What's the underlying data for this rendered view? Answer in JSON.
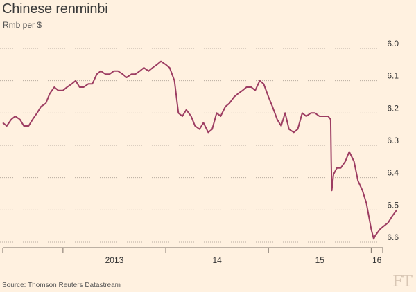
{
  "chart_data": {
    "type": "line",
    "title": "Chinese renminbi",
    "subtitle": "Rmb per $",
    "source": "Source: Thomson Reuters Datastream",
    "y_inverted": true,
    "ylim": [
      6.0,
      6.6
    ],
    "y_ticks": [
      "6.0",
      "6.1",
      "6.2",
      "6.3",
      "6.4",
      "6.5",
      "6.6"
    ],
    "x_ticks": [
      "2013",
      "14",
      "15",
      "16"
    ],
    "xlim": [
      "2012-06-01",
      "2016-04-15"
    ],
    "series": [
      {
        "color": "#9d3d62",
        "x": [
          "2012-06-01",
          "2012-06-15",
          "2012-07-01",
          "2012-07-15",
          "2012-08-01",
          "2012-08-15",
          "2012-09-01",
          "2012-09-15",
          "2012-10-01",
          "2012-10-15",
          "2012-11-01",
          "2012-11-15",
          "2012-12-01",
          "2012-12-15",
          "2013-01-01",
          "2013-01-15",
          "2013-02-01",
          "2013-02-15",
          "2013-03-01",
          "2013-03-15",
          "2013-04-01",
          "2013-04-15",
          "2013-05-01",
          "2013-05-15",
          "2013-06-01",
          "2013-06-15",
          "2013-07-01",
          "2013-07-15",
          "2013-08-01",
          "2013-08-15",
          "2013-09-01",
          "2013-09-15",
          "2013-10-01",
          "2013-10-15",
          "2013-11-01",
          "2013-11-15",
          "2013-12-01",
          "2013-12-15",
          "2014-01-01",
          "2014-01-15",
          "2014-02-01",
          "2014-02-15",
          "2014-03-01",
          "2014-03-15",
          "2014-04-01",
          "2014-04-15",
          "2014-05-01",
          "2014-05-15",
          "2014-06-01",
          "2014-06-15",
          "2014-07-01",
          "2014-07-15",
          "2014-08-01",
          "2014-08-15",
          "2014-09-01",
          "2014-09-15",
          "2014-10-01",
          "2014-10-15",
          "2014-11-01",
          "2014-11-15",
          "2014-12-01",
          "2014-12-15",
          "2015-01-01",
          "2015-01-15",
          "2015-02-01",
          "2015-02-15",
          "2015-03-01",
          "2015-03-15",
          "2015-04-01",
          "2015-04-15",
          "2015-05-01",
          "2015-05-15",
          "2015-06-01",
          "2015-06-15",
          "2015-07-01",
          "2015-07-15",
          "2015-08-01",
          "2015-08-10",
          "2015-08-12",
          "2015-08-14",
          "2015-08-20",
          "2015-09-01",
          "2015-09-15",
          "2015-10-01",
          "2015-10-15",
          "2015-11-01",
          "2015-11-15",
          "2015-12-01",
          "2015-12-15",
          "2016-01-01",
          "2016-01-07",
          "2016-01-10",
          "2016-01-15",
          "2016-02-01",
          "2016-02-15",
          "2016-03-01",
          "2016-03-15",
          "2016-04-01"
        ],
        "y": [
          6.23,
          6.24,
          6.22,
          6.21,
          6.22,
          6.24,
          6.24,
          6.22,
          6.2,
          6.18,
          6.17,
          6.14,
          6.12,
          6.13,
          6.13,
          6.12,
          6.11,
          6.1,
          6.12,
          6.12,
          6.11,
          6.11,
          6.08,
          6.07,
          6.08,
          6.08,
          6.07,
          6.07,
          6.08,
          6.09,
          6.08,
          6.08,
          6.07,
          6.06,
          6.07,
          6.06,
          6.05,
          6.04,
          6.05,
          6.06,
          6.1,
          6.2,
          6.21,
          6.19,
          6.21,
          6.24,
          6.25,
          6.23,
          6.26,
          6.25,
          6.2,
          6.21,
          6.18,
          6.17,
          6.15,
          6.14,
          6.13,
          6.12,
          6.12,
          6.13,
          6.1,
          6.11,
          6.15,
          6.18,
          6.22,
          6.24,
          6.2,
          6.25,
          6.26,
          6.25,
          6.2,
          6.21,
          6.2,
          6.2,
          6.21,
          6.21,
          6.21,
          6.22,
          6.35,
          6.44,
          6.39,
          6.37,
          6.37,
          6.35,
          6.32,
          6.35,
          6.41,
          6.44,
          6.48,
          6.56,
          6.58,
          6.59,
          6.58,
          6.56,
          6.55,
          6.54,
          6.52,
          6.5
        ]
      }
    ]
  }
}
